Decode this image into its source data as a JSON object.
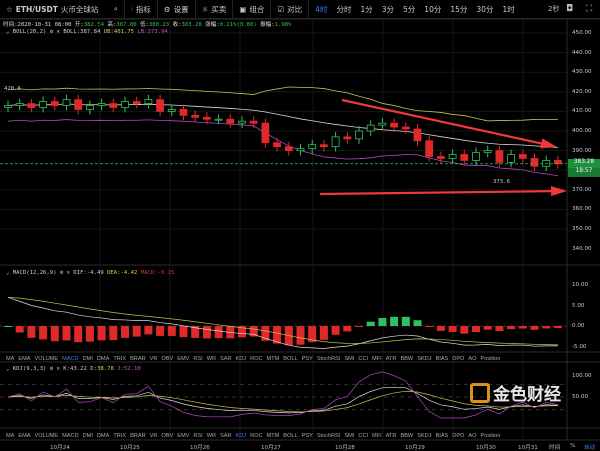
{
  "header": {
    "symbol": "ETH/USDT",
    "exchange": "火币全球站",
    "tools": [
      "指标",
      "设置",
      "买卖",
      "组合",
      "对比"
    ],
    "timeframe_active": "4时",
    "timeframes": [
      "分时",
      "1分",
      "3分",
      "5分",
      "10分",
      "15分",
      "30分",
      "1时"
    ],
    "countdown_label": "2秒"
  },
  "info": {
    "time": "时间:2020-10-31 08:00",
    "open_label": "开:",
    "open": "382.54",
    "high_label": "高:",
    "high": "387.80",
    "low_label": "低:",
    "low": "380.23",
    "close_label": "收:",
    "close": "383.28",
    "change_label": "涨幅:",
    "change": "0.21%(0.80)",
    "amp_label": "振幅:",
    "amp": "1.98%"
  },
  "boll": {
    "name": "BOLL(20,2)",
    "boll": "BOLL:387.84",
    "ub": "UB:401.75",
    "lb": "LB:373.94",
    "high_mark": "420.6",
    "low_mark": "373.6"
  },
  "macd": {
    "name": "MACD(12,26,9)",
    "dif": "DIF:-4.49",
    "dea": "DEA:-4.42",
    "macd": "MACD:-0.15"
  },
  "kdj": {
    "name": "KDJ(9,3,3)",
    "k": "K:43.22",
    "d": "D:38.78",
    "j": "J:52.10"
  },
  "indicator_tabs": [
    "MA",
    "EMA",
    "VOLUME",
    "MACD",
    "DMI",
    "DMA",
    "TRIX",
    "BRAR",
    "VR",
    "OBV",
    "EMV",
    "RSI",
    "WR",
    "SAR",
    "KDJ",
    "ROC",
    "MTM",
    "BOLL",
    "PSY",
    "StochRSI",
    "SMI",
    "CCI",
    "MFI",
    "ATR",
    "BBW",
    "SKDJ",
    "BIAS",
    "DPO",
    "AO",
    "Position"
  ],
  "price_axis": [
    "450.00",
    "440.00",
    "430.00",
    "420.00",
    "410.00",
    "400.00",
    "390.00",
    "370.00",
    "360.00",
    "350.00",
    "340.00"
  ],
  "last_price": "383.28",
  "last_timer": "18:57",
  "macd_axis": [
    "10.00",
    "5.00",
    "0.00",
    "-5.00"
  ],
  "kdj_axis": [
    "100.00",
    "50.00"
  ],
  "dates": [
    "10月24",
    "10月25",
    "10月26",
    "10月27",
    "10月28",
    "10月29",
    "10月30",
    "10月31"
  ],
  "footer": {
    "time_label": "时间",
    "pct": "%",
    "auto": "自动"
  },
  "watermark": "金色财经",
  "colors": {
    "up": "#2ec25e",
    "down": "#e02a2a",
    "mid": "#d8d8d8",
    "ub": "#c9c24a",
    "lb": "#b146c2"
  },
  "chart_data": {
    "type": "candlestick",
    "title": "ETH/USDT 4h",
    "ylim": [
      340,
      450
    ],
    "closes": [
      413,
      414,
      412,
      415,
      413,
      416,
      411,
      413,
      414,
      412,
      415,
      414,
      416,
      410,
      411,
      408,
      407,
      406,
      406,
      404,
      405,
      404,
      394,
      392,
      390,
      391,
      393,
      392,
      397,
      396,
      400,
      403,
      404,
      402,
      401,
      395,
      387,
      386,
      388,
      385,
      389,
      390,
      384,
      388,
      386,
      382,
      385,
      383.28
    ],
    "macd_ylim": [
      -8,
      12
    ],
    "kdj_ylim": [
      0,
      110
    ]
  }
}
